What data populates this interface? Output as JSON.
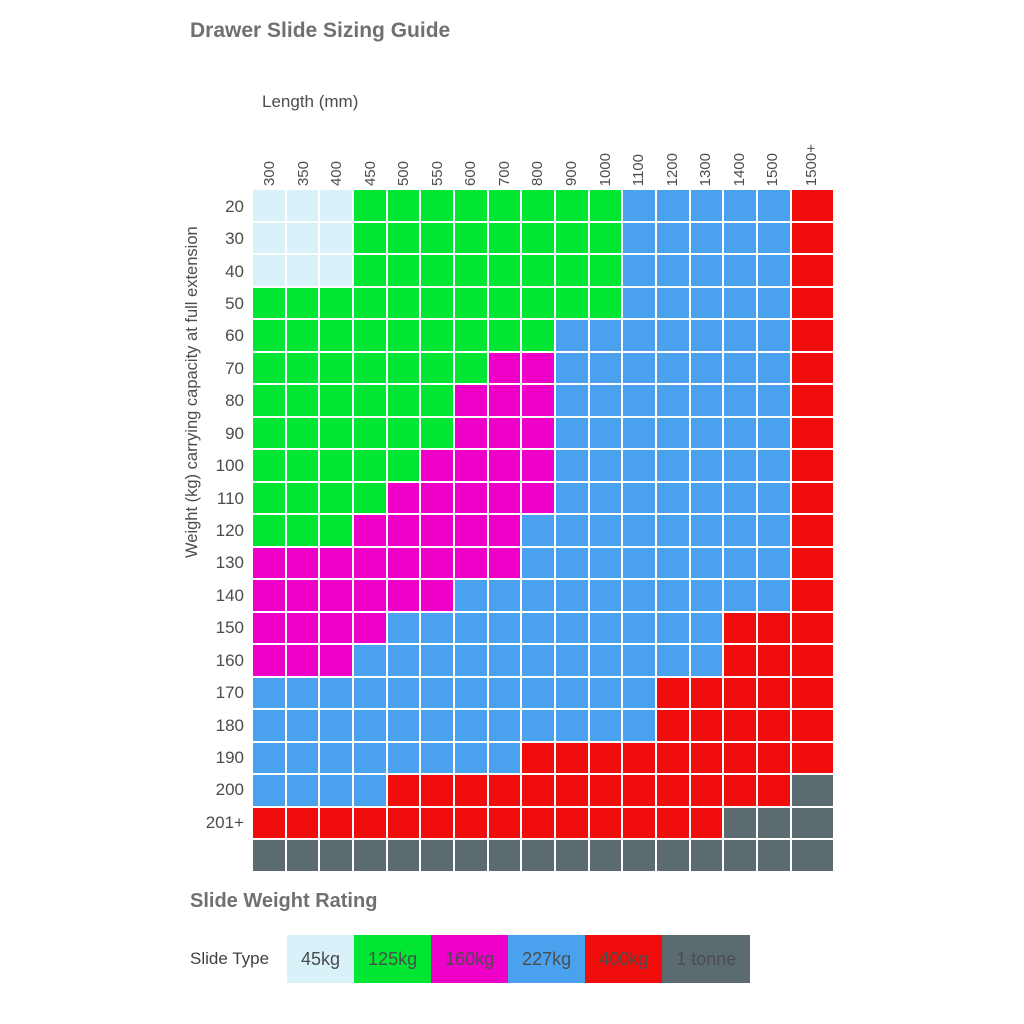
{
  "title": "Drawer Slide Sizing Guide",
  "chart_data": {
    "type": "heatmap",
    "x_axis_title": "Length (mm)",
    "y_axis_title": "Weight (kg) carrying capacity at full extension",
    "columns": [
      "300",
      "350",
      "400",
      "450",
      "500",
      "550",
      "600",
      "700",
      "800",
      "900",
      "1000",
      "1100",
      "1200",
      "1300",
      "1400",
      "1500",
      "1500+"
    ],
    "rows": [
      "20",
      "30",
      "40",
      "50",
      "60",
      "70",
      "80",
      "90",
      "100",
      "110",
      "120",
      "130",
      "140",
      "150",
      "160",
      "170",
      "180",
      "190",
      "200",
      "201+",
      ""
    ],
    "ratings": {
      "L": {
        "label": "45kg",
        "color": "#d9f2f9"
      },
      "G": {
        "label": "125kg",
        "color": "#00e632"
      },
      "M": {
        "label": "160kg",
        "color": "#ee00c8"
      },
      "B": {
        "label": "227kg",
        "color": "#4aa2ee"
      },
      "R": {
        "label": "400kg",
        "color": "#f20d0d"
      },
      "T": {
        "label": "1 tonne",
        "color": "#5c6b70"
      }
    },
    "grid": [
      "LLLGGGGGGGGBBBBBR",
      "LLLGGGGGGGGBBBBBR",
      "LLLGGGGGGGGBBBBBR",
      "GGGGGGGGGGGBBBBBR",
      "GGGGGGGGGBBBBBBBR",
      "GGGGGGGMMBBBBBBBR",
      "GGGGGGMMMBBBBBBBR",
      "GGGGGGMMMBBBBBBBR",
      "GGGGGMMMMBBBBBBBR",
      "GGGGMMMMMBBBBBBBR",
      "GGGMMMMMBBBBBBBBR",
      "MMMMMMMMBBBBBBBBR",
      "MMMMMMBBBBBBBBBBR",
      "MMMMBBBBBBBBBBRRR",
      "MMMBBBBBBBBBBBRRR",
      "BBBBBBBBBBBBRRRRR",
      "BBBBBBBBBBBBRRRRR",
      "BBBBBBBBRRRRRRRRR",
      "BBBBRRRRRRRRRRRRT",
      "RRRRRRRRRRRRRRTTT",
      "TTTTTTTTTTTTTTTTT"
    ]
  },
  "legend": {
    "title": "Slide Weight Rating",
    "label": "Slide Type",
    "order": [
      "L",
      "G",
      "M",
      "B",
      "R",
      "T"
    ]
  }
}
